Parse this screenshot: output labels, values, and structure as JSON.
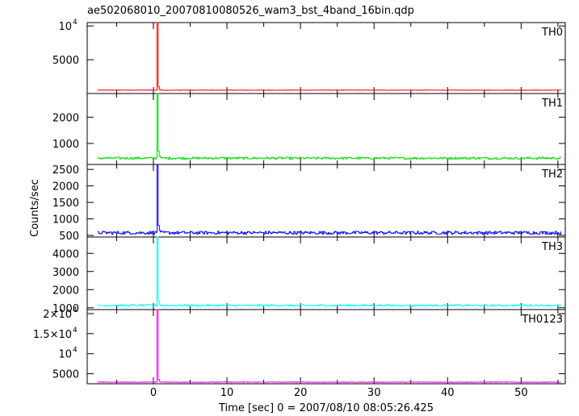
{
  "title": "ae502068010_20070810080526_wam3_bst_4band_16bin.qdp",
  "xlabel": "Time [sec] 0 = 2007/08/10 08:05:26.425",
  "ylabel": "Counts/sec",
  "chart_data": {
    "type": "line",
    "title": "ae502068010_20070810080526_wam3_bst_4band_16bin.qdp",
    "xlabel": "Time [sec] 0 = 2007/08/10 08:05:26.425",
    "ylabel": "Counts/sec",
    "xlim": [
      -9,
      56
    ],
    "xticks": [
      "0",
      "10",
      "20",
      "30",
      "40",
      "50"
    ],
    "xtick_values": [
      0,
      10,
      20,
      30,
      40,
      50
    ],
    "layout": "5 vertically stacked panels sharing the time axis",
    "grid": false,
    "panels": [
      {
        "name": "TH0",
        "color": "#ff0000",
        "ylim": [
          0,
          10500
        ],
        "yticks": [
          {
            "v": 5000,
            "label": "5000"
          },
          {
            "v": 10000,
            "label": "10",
            "exp": "4"
          }
        ],
        "baseline": 500,
        "noise": 30,
        "peak": 10500,
        "peak_time": 0.5,
        "tail": [
          1000,
          600
        ]
      },
      {
        "name": "TH1",
        "color": "#00dd00",
        "ylim": [
          200,
          2900
        ],
        "yticks": [
          {
            "v": 1000,
            "label": "1000"
          },
          {
            "v": 2000,
            "label": "2000"
          }
        ],
        "baseline": 440,
        "noise": 40,
        "peak": 2900,
        "peak_time": 0.5,
        "tail": [
          700,
          520
        ]
      },
      {
        "name": "TH2",
        "color": "#0000ff",
        "ylim": [
          450,
          2650
        ],
        "yticks": [
          {
            "v": 500,
            "label": "500"
          },
          {
            "v": 1000,
            "label": "1000"
          },
          {
            "v": 1500,
            "label": "1500"
          },
          {
            "v": 2000,
            "label": "2000"
          },
          {
            "v": 2500,
            "label": "2500"
          }
        ],
        "baseline": 580,
        "noise": 45,
        "peak": 2650,
        "peak_time": 0.5,
        "tail": [
          800,
          650
        ]
      },
      {
        "name": "TH3",
        "color": "#00ffff",
        "ylim": [
          900,
          4900
        ],
        "yticks": [
          {
            "v": 1000,
            "label": "1000"
          },
          {
            "v": 2000,
            "label": "2000"
          },
          {
            "v": 3000,
            "label": "3000"
          },
          {
            "v": 4000,
            "label": "4000"
          }
        ],
        "baseline": 1130,
        "noise": 45,
        "peak": 4900,
        "peak_time": 0.5,
        "tail": [
          1400,
          1200
        ]
      },
      {
        "name": "TH0123",
        "color": "#ff00ff",
        "ylim": [
          2500,
          21000
        ],
        "yticks": [
          {
            "v": 5000,
            "label": "5000"
          },
          {
            "v": 10000,
            "label": "10",
            "exp": "4"
          },
          {
            "v": 15000,
            "label": "1.5×10",
            "exp": "4"
          },
          {
            "v": 20000,
            "label": "2×10",
            "exp": "4"
          }
        ],
        "baseline": 2900,
        "noise": 70,
        "peak": 21000,
        "peak_time": 0.5,
        "tail": [
          3600,
          3100
        ]
      }
    ]
  }
}
